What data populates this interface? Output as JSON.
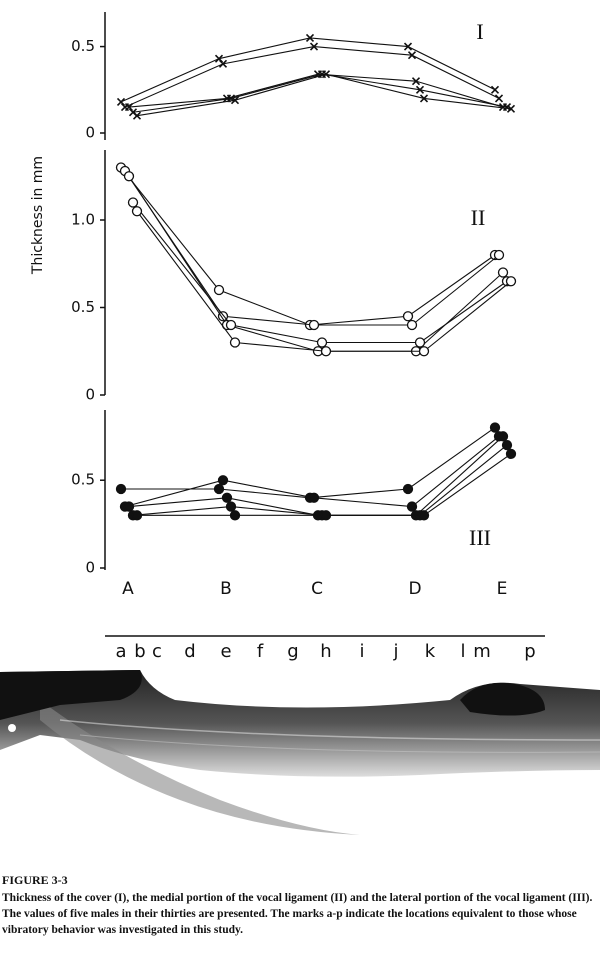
{
  "chart_data": [
    {
      "type": "line",
      "title": "I",
      "marker": "x",
      "color": "#111",
      "ylim": [
        0,
        0.7
      ],
      "yticks": [
        0,
        0.5
      ],
      "series": [
        {
          "color": "#111",
          "values": [
            0.18,
            0.43,
            0.55,
            0.5,
            0.25
          ]
        },
        {
          "color": "#111",
          "values": [
            0.15,
            0.4,
            0.5,
            0.45,
            0.2
          ]
        },
        {
          "color": "#111",
          "values": [
            0.15,
            0.2,
            0.34,
            0.3,
            0.15
          ]
        },
        {
          "color": "#111",
          "values": [
            0.12,
            0.2,
            0.34,
            0.25,
            0.15
          ]
        },
        {
          "color": "#111",
          "values": [
            0.1,
            0.19,
            0.34,
            0.2,
            0.14
          ]
        }
      ]
    },
    {
      "type": "line",
      "title": "II",
      "marker": "open-circle",
      "color": "#111",
      "ylabel": "Thickness  in  mm",
      "ylim": [
        0,
        1.4
      ],
      "yticks": [
        0,
        0.5,
        {
          "value": 1,
          "label": "1.0"
        }
      ],
      "series": [
        {
          "color": "#111",
          "values": [
            1.3,
            0.6,
            0.4,
            0.45,
            0.8
          ]
        },
        {
          "color": "#111",
          "values": [
            1.28,
            0.45,
            0.4,
            0.4,
            0.8
          ]
        },
        {
          "color": "#111",
          "values": [
            1.25,
            0.4,
            0.25,
            0.25,
            0.7
          ]
        },
        {
          "color": "#111",
          "values": [
            1.1,
            0.4,
            0.3,
            0.3,
            0.65
          ]
        },
        {
          "color": "#111",
          "values": [
            1.05,
            0.3,
            0.25,
            0.25,
            0.65
          ]
        }
      ]
    },
    {
      "type": "line",
      "title": "III",
      "marker": "filled-circle",
      "color": "#111",
      "categories": [
        "A",
        "B",
        "C",
        "D",
        "E"
      ],
      "ylim": [
        0,
        0.9
      ],
      "yticks": [
        0,
        0.5
      ],
      "series": [
        {
          "color": "#111",
          "values": [
            0.45,
            0.45,
            0.4,
            0.45,
            0.8
          ]
        },
        {
          "color": "#111",
          "values": [
            0.35,
            0.5,
            0.4,
            0.35,
            0.75
          ]
        },
        {
          "color": "#111",
          "values": [
            0.35,
            0.4,
            0.3,
            0.3,
            0.75
          ]
        },
        {
          "color": "#111",
          "values": [
            0.3,
            0.35,
            0.3,
            0.3,
            0.7
          ]
        },
        {
          "color": "#111",
          "values": [
            0.3,
            0.3,
            0.3,
            0.3,
            0.65
          ]
        }
      ]
    }
  ],
  "location_marks": [
    "a",
    "b",
    "c",
    "d",
    "e",
    "f",
    "g",
    "h",
    "i",
    "j",
    "k",
    "l",
    "m",
    "p"
  ],
  "caption": {
    "label": "FIGURE 3-3",
    "text": "Thickness of the cover (I), the medial portion of the vocal ligament (II) and the lateral portion of the vocal ligament (III). The values of five males in their thirties are presented. The marks a-p indicate the locations equivalent to those whose vibratory behavior was investigated in this study."
  }
}
